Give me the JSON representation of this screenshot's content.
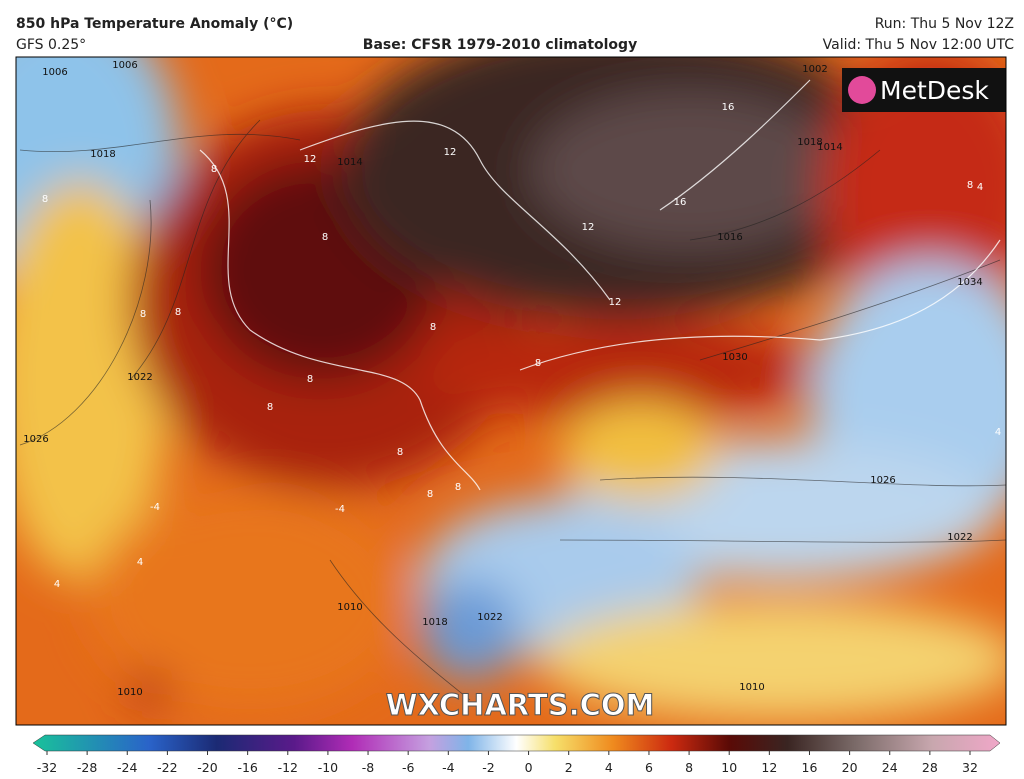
{
  "header": {
    "title": "850 hPa Temperature Anomaly (°C)",
    "model": "GFS 0.25°",
    "base": "Base: CFSR 1979-2010 climatology",
    "run": "Run: Thu 5 Nov 12Z",
    "valid": "Valid: Thu 5 Nov 12:00 UTC"
  },
  "map": {
    "logo": "MetDesk",
    "watermark": "WXCHARTS.COM",
    "isobar_labels": [
      "1006",
      "1006",
      "1018",
      "1014",
      "1022",
      "1026",
      "1026",
      "1022",
      "1030",
      "1034",
      "1018",
      "1016",
      "1010",
      "1018",
      "1022",
      "1010",
      "1010",
      "1014",
      "1002"
    ],
    "anomaly_labels": [
      "12",
      "12",
      "12",
      "12",
      "16",
      "16",
      "8",
      "8",
      "8",
      "8",
      "8",
      "8",
      "8",
      "8",
      "8",
      "8",
      "4",
      "-4",
      "4",
      "4",
      "4",
      "-4",
      "8",
      "8",
      "8"
    ]
  },
  "colorbar": {
    "ticks": [
      -32,
      -28,
      -24,
      -22,
      -20,
      -16,
      -12,
      -10,
      -8,
      -6,
      -4,
      -2,
      0,
      2,
      4,
      6,
      8,
      10,
      12,
      16,
      20,
      24,
      28,
      32
    ]
  }
}
